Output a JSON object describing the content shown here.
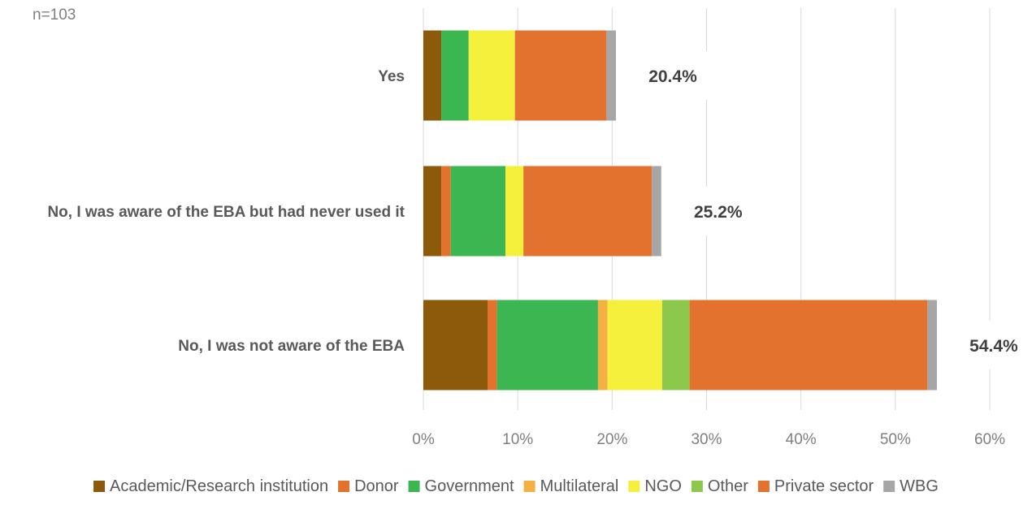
{
  "note": "n=103",
  "chart_data": {
    "type": "bar",
    "orientation": "horizontal",
    "stacked": true,
    "title": "",
    "xlabel": "",
    "ylabel": "",
    "xlim": [
      0,
      60
    ],
    "x_ticks": [
      "0%",
      "10%",
      "20%",
      "30%",
      "40%",
      "50%",
      "60%"
    ],
    "grid": true,
    "legend_position": "bottom",
    "categories": [
      "Yes",
      "No, I was aware of the EBA but had never used it",
      "No, I was not aware of the EBA"
    ],
    "totals": [
      "20.4%",
      "25.2%",
      "54.4%"
    ],
    "series": [
      {
        "name": "Academic/Research institution",
        "color": "#8B5A0B",
        "values": [
          1.9,
          1.9,
          6.8
        ]
      },
      {
        "name": "Donor",
        "color": "#E3722F",
        "values": [
          0.0,
          1.0,
          1.0
        ]
      },
      {
        "name": "Government",
        "color": "#3CB650",
        "values": [
          2.9,
          5.8,
          10.7
        ]
      },
      {
        "name": "Multilateral",
        "color": "#F4B042",
        "values": [
          0.0,
          0.0,
          1.0
        ]
      },
      {
        "name": "NGO",
        "color": "#F4F03C",
        "values": [
          4.9,
          1.9,
          5.8
        ]
      },
      {
        "name": "Other",
        "color": "#8CC84B",
        "values": [
          0.0,
          0.0,
          2.9
        ]
      },
      {
        "name": "Private sector",
        "color": "#E3722F",
        "values": [
          9.7,
          13.6,
          25.2
        ]
      },
      {
        "name": "WBG",
        "color": "#A6A6A6",
        "values": [
          1.0,
          1.0,
          1.0
        ]
      }
    ]
  }
}
